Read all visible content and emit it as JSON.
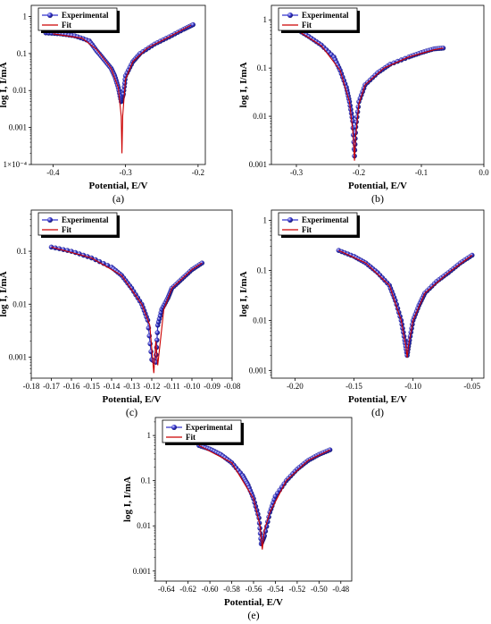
{
  "figure": {
    "axis_color": "#000000",
    "experimental_color": "#3333cc",
    "fit_color": "#cc0000",
    "marker": "sphere"
  },
  "chart_data": [
    {
      "panel": "(a)",
      "type": "line",
      "xlabel": "Potential, E/V",
      "ylabel": "log I, I/mA",
      "xlim": [
        -0.43,
        -0.19
      ],
      "ylim": [
        0.0001,
        2
      ],
      "yscale": "log",
      "xticks": [
        -0.4,
        -0.3,
        -0.2
      ],
      "xtick_labels": [
        "-0.4",
        "-0.3",
        "-0.2"
      ],
      "yticks": [
        0.0001,
        0.001,
        0.01,
        0.1,
        1
      ],
      "ytick_labels": [
        "1×10⁻⁴",
        "0.001",
        "0.01",
        "0.1",
        "1"
      ],
      "legend": [
        "Experimental",
        "Fit"
      ],
      "legend_position": "top-left",
      "series": [
        {
          "name": "Experimental",
          "x": [
            -0.41,
            -0.39,
            -0.37,
            -0.35,
            -0.34,
            -0.33,
            -0.32,
            -0.315,
            -0.31,
            -0.306,
            -0.303,
            -0.3,
            -0.29,
            -0.28,
            -0.26,
            -0.24,
            -0.22,
            -0.207
          ],
          "y": [
            0.36,
            0.34,
            0.3,
            0.22,
            0.12,
            0.07,
            0.04,
            0.025,
            0.012,
            0.005,
            0.008,
            0.025,
            0.06,
            0.1,
            0.18,
            0.28,
            0.45,
            0.6
          ]
        },
        {
          "name": "Fit",
          "x": [
            -0.4,
            -0.36,
            -0.34,
            -0.32,
            -0.31,
            -0.306,
            -0.305,
            -0.304,
            -0.3,
            -0.29,
            -0.27,
            -0.24,
            -0.21
          ],
          "y": [
            0.34,
            0.26,
            0.13,
            0.04,
            0.012,
            0.002,
            0.0002,
            0.002,
            0.02,
            0.06,
            0.14,
            0.28,
            0.58
          ]
        }
      ]
    },
    {
      "panel": "(b)",
      "type": "line",
      "xlabel": "Potential, E/V",
      "ylabel": "log I, I/mA",
      "xlim": [
        -0.34,
        0.0
      ],
      "ylim": [
        0.001,
        2
      ],
      "yscale": "log",
      "xticks": [
        -0.3,
        -0.2,
        -0.1,
        0.0
      ],
      "xtick_labels": [
        "-0.3",
        "-0.2",
        "-0.1",
        "0.0"
      ],
      "yticks": [
        0.001,
        0.01,
        0.1,
        1
      ],
      "ytick_labels": [
        "0.001",
        "0.01",
        "0.1",
        "1"
      ],
      "legend": [
        "Experimental",
        "Fit"
      ],
      "legend_position": "top-left",
      "series": [
        {
          "name": "Experimental",
          "x": [
            -0.3,
            -0.28,
            -0.26,
            -0.24,
            -0.23,
            -0.22,
            -0.215,
            -0.21,
            -0.207,
            -0.205,
            -0.2,
            -0.19,
            -0.17,
            -0.15,
            -0.12,
            -0.1,
            -0.08,
            -0.065
          ],
          "y": [
            0.65,
            0.45,
            0.3,
            0.17,
            0.09,
            0.04,
            0.02,
            0.008,
            0.0015,
            0.006,
            0.02,
            0.045,
            0.08,
            0.12,
            0.17,
            0.21,
            0.25,
            0.26
          ]
        },
        {
          "name": "Fit",
          "x": [
            -0.3,
            -0.26,
            -0.23,
            -0.215,
            -0.209,
            -0.207,
            -0.205,
            -0.2,
            -0.19,
            -0.16,
            -0.12,
            -0.08,
            -0.065
          ],
          "y": [
            0.62,
            0.29,
            0.09,
            0.02,
            0.004,
            0.0012,
            0.004,
            0.018,
            0.045,
            0.1,
            0.17,
            0.24,
            0.26
          ]
        }
      ]
    },
    {
      "panel": "(c)",
      "type": "line",
      "xlabel": "Potential, E/V",
      "ylabel": "log I, I/mA",
      "xlim": [
        -0.18,
        -0.08
      ],
      "ylim": [
        0.0004,
        0.6
      ],
      "yscale": "log",
      "xticks": [
        -0.18,
        -0.17,
        -0.16,
        -0.15,
        -0.14,
        -0.13,
        -0.12,
        -0.11,
        -0.1,
        -0.09,
        -0.08
      ],
      "xtick_labels": [
        "-0.18",
        "-0.17",
        "-0.16",
        "-0.15",
        "-0.14",
        "-0.13",
        "-0.12",
        "-0.11",
        "-0.10",
        "-0.09",
        "-0.08"
      ],
      "yticks": [
        0.001,
        0.01,
        0.1
      ],
      "ytick_labels": [
        "0.001",
        "0.01",
        "0.1"
      ],
      "legend": [
        "Experimental",
        "Fit"
      ],
      "legend_position": "top-left",
      "series": [
        {
          "name": "Experimental",
          "x": [
            -0.17,
            -0.16,
            -0.15,
            -0.14,
            -0.135,
            -0.13,
            -0.125,
            -0.122,
            -0.12,
            -0.118,
            -0.117,
            -0.115,
            -0.112,
            -0.11,
            -0.105,
            -0.1,
            -0.095
          ],
          "y": [
            0.12,
            0.1,
            0.075,
            0.05,
            0.035,
            0.02,
            0.01,
            0.005,
            0.0009,
            0.0008,
            0.004,
            0.008,
            0.013,
            0.02,
            0.03,
            0.045,
            0.06
          ]
        },
        {
          "name": "Fit",
          "x": [
            -0.17,
            -0.15,
            -0.135,
            -0.125,
            -0.121,
            -0.119,
            -0.118,
            -0.117,
            -0.114,
            -0.11,
            -0.1,
            -0.095
          ],
          "y": [
            0.12,
            0.075,
            0.035,
            0.01,
            0.004,
            0.0005,
            0.002,
            0.0007,
            0.008,
            0.02,
            0.045,
            0.06
          ]
        }
      ]
    },
    {
      "panel": "(d)",
      "type": "line",
      "xlabel": "Potential, E/V",
      "ylabel": "log I, I/mA",
      "xlim": [
        -0.22,
        -0.04
      ],
      "ylim": [
        0.0007,
        1.6
      ],
      "yscale": "log",
      "xticks": [
        -0.2,
        -0.15,
        -0.1,
        -0.05
      ],
      "xtick_labels": [
        "-0.20",
        "-0.15",
        "-0.10",
        "-0.05"
      ],
      "yticks": [
        0.001,
        0.01,
        0.1,
        1
      ],
      "ytick_labels": [
        "0.001",
        "0.01",
        "0.1",
        "1"
      ],
      "legend": [
        "Experimental",
        "Fit"
      ],
      "legend_position": "top-left",
      "series": [
        {
          "name": "Experimental",
          "x": [
            -0.163,
            -0.15,
            -0.14,
            -0.13,
            -0.12,
            -0.115,
            -0.11,
            -0.107,
            -0.105,
            -0.103,
            -0.1,
            -0.095,
            -0.09,
            -0.08,
            -0.07,
            -0.06,
            -0.05
          ],
          "y": [
            0.25,
            0.19,
            0.14,
            0.09,
            0.05,
            0.025,
            0.01,
            0.004,
            0.002,
            0.004,
            0.01,
            0.02,
            0.035,
            0.06,
            0.09,
            0.14,
            0.2
          ]
        },
        {
          "name": "Fit",
          "x": [
            -0.163,
            -0.14,
            -0.12,
            -0.11,
            -0.106,
            -0.105,
            -0.104,
            -0.1,
            -0.09,
            -0.07,
            -0.05
          ],
          "y": [
            0.25,
            0.14,
            0.05,
            0.01,
            0.003,
            0.0018,
            0.003,
            0.01,
            0.035,
            0.09,
            0.2
          ]
        }
      ]
    },
    {
      "panel": "(e)",
      "type": "line",
      "xlabel": "Potential, E/V",
      "ylabel": "log I, I/mA",
      "xlim": [
        -0.65,
        -0.47
      ],
      "ylim": [
        0.0006,
        2.5
      ],
      "yscale": "log",
      "xticks": [
        -0.64,
        -0.62,
        -0.6,
        -0.58,
        -0.56,
        -0.54,
        -0.52,
        -0.5,
        -0.48
      ],
      "xtick_labels": [
        "-0.64",
        "-0.62",
        "-0.60",
        "-0.58",
        "-0.56",
        "-0.54",
        "-0.52",
        "-0.50",
        "-0.48"
      ],
      "yticks": [
        0.001,
        0.01,
        0.1,
        1
      ],
      "ytick_labels": [
        "0.001",
        "0.01",
        "0.1",
        "1"
      ],
      "legend": [
        "Experimental",
        "Fit"
      ],
      "legend_position": "top-left",
      "series": [
        {
          "name": "Experimental",
          "x": [
            -0.61,
            -0.6,
            -0.59,
            -0.58,
            -0.57,
            -0.565,
            -0.56,
            -0.555,
            -0.553,
            -0.55,
            -0.545,
            -0.54,
            -0.53,
            -0.52,
            -0.51,
            -0.5,
            -0.49
          ],
          "y": [
            0.6,
            0.5,
            0.38,
            0.25,
            0.13,
            0.08,
            0.04,
            0.015,
            0.004,
            0.006,
            0.02,
            0.045,
            0.1,
            0.18,
            0.28,
            0.38,
            0.48
          ]
        },
        {
          "name": "Fit",
          "x": [
            -0.61,
            -0.58,
            -0.56,
            -0.554,
            -0.552,
            -0.55,
            -0.545,
            -0.53,
            -0.51,
            -0.49
          ],
          "y": [
            0.6,
            0.25,
            0.04,
            0.01,
            0.003,
            0.008,
            0.02,
            0.1,
            0.28,
            0.48
          ]
        }
      ]
    }
  ]
}
